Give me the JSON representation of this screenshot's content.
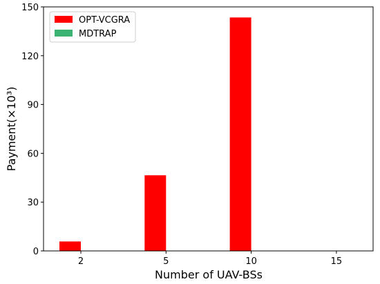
{
  "chart_data": {
    "type": "bar",
    "xlabel": "Number of UAV-BSs",
    "ylabel": "Payment(×10³)",
    "categories": [
      "2",
      "5",
      "10",
      "15"
    ],
    "series": [
      {
        "name": "OPT-VCGRA",
        "color": "#ff0000",
        "values": [
          5.8,
          46.5,
          143.5,
          0
        ]
      },
      {
        "name": "MDTRAP",
        "color": "#3cb371",
        "values": [
          0,
          0,
          0,
          0
        ]
      }
    ],
    "ylim": [
      0,
      150
    ],
    "yticks": [
      0,
      30,
      60,
      90,
      120,
      150
    ],
    "legend": "upper left"
  }
}
